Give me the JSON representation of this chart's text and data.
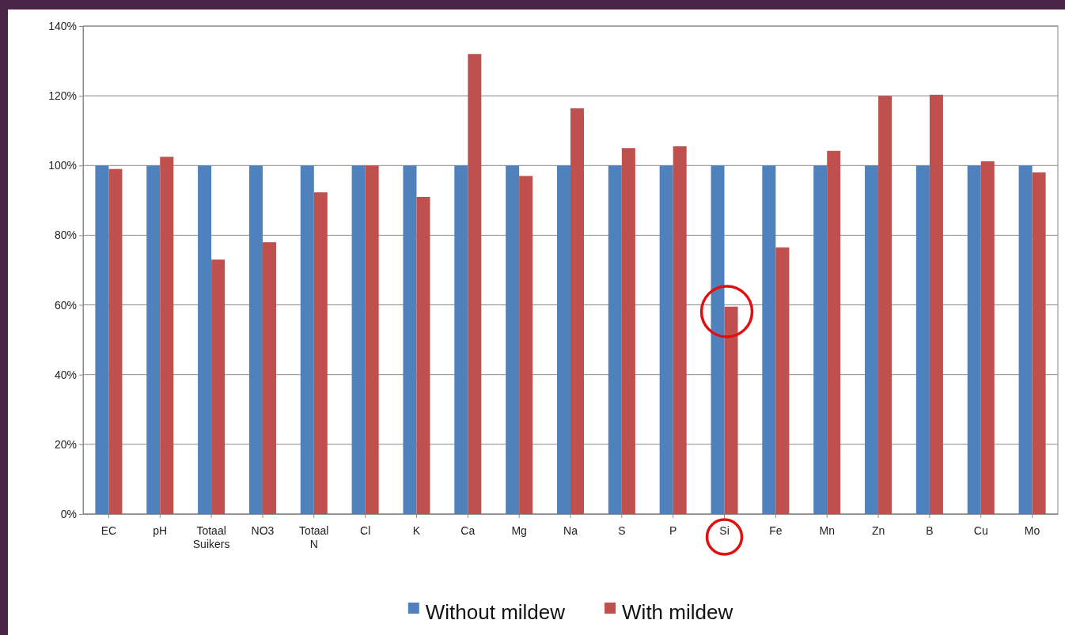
{
  "chart_data": {
    "type": "bar",
    "categories": [
      "EC",
      "pH",
      "Totaal Suikers",
      "NO3",
      "Totaal N",
      "Cl",
      "K",
      "Ca",
      "Mg",
      "Na",
      "S",
      "P",
      "Si",
      "Fe",
      "Mn",
      "Zn",
      "B",
      "Cu",
      "Mo"
    ],
    "series": [
      {
        "name": "Without mildew",
        "color": "#4f81bd",
        "values": [
          100,
          100,
          100,
          100,
          100,
          100,
          100,
          100,
          100,
          100,
          100,
          100,
          100,
          100,
          100,
          100,
          100,
          100,
          100
        ]
      },
      {
        "name": "With mildew",
        "color": "#c0504d",
        "values": [
          99,
          102.5,
          73,
          78,
          92.3,
          100,
          91,
          132,
          97,
          116.4,
          105,
          105.5,
          59.5,
          76.5,
          104.2,
          120,
          120.3,
          101.2,
          98
        ]
      }
    ],
    "ylim": [
      0,
      140
    ],
    "yticks": [
      {
        "value": 0,
        "label": "0%"
      },
      {
        "value": 20,
        "label": "20%"
      },
      {
        "value": 40,
        "label": "40%"
      },
      {
        "value": 60,
        "label": "60%"
      },
      {
        "value": 80,
        "label": "80%"
      },
      {
        "value": 100,
        "label": "100%"
      },
      {
        "value": 120,
        "label": "120%"
      },
      {
        "value": 140,
        "label": "140%"
      }
    ],
    "grid": "y",
    "legend": "bottom"
  }
}
